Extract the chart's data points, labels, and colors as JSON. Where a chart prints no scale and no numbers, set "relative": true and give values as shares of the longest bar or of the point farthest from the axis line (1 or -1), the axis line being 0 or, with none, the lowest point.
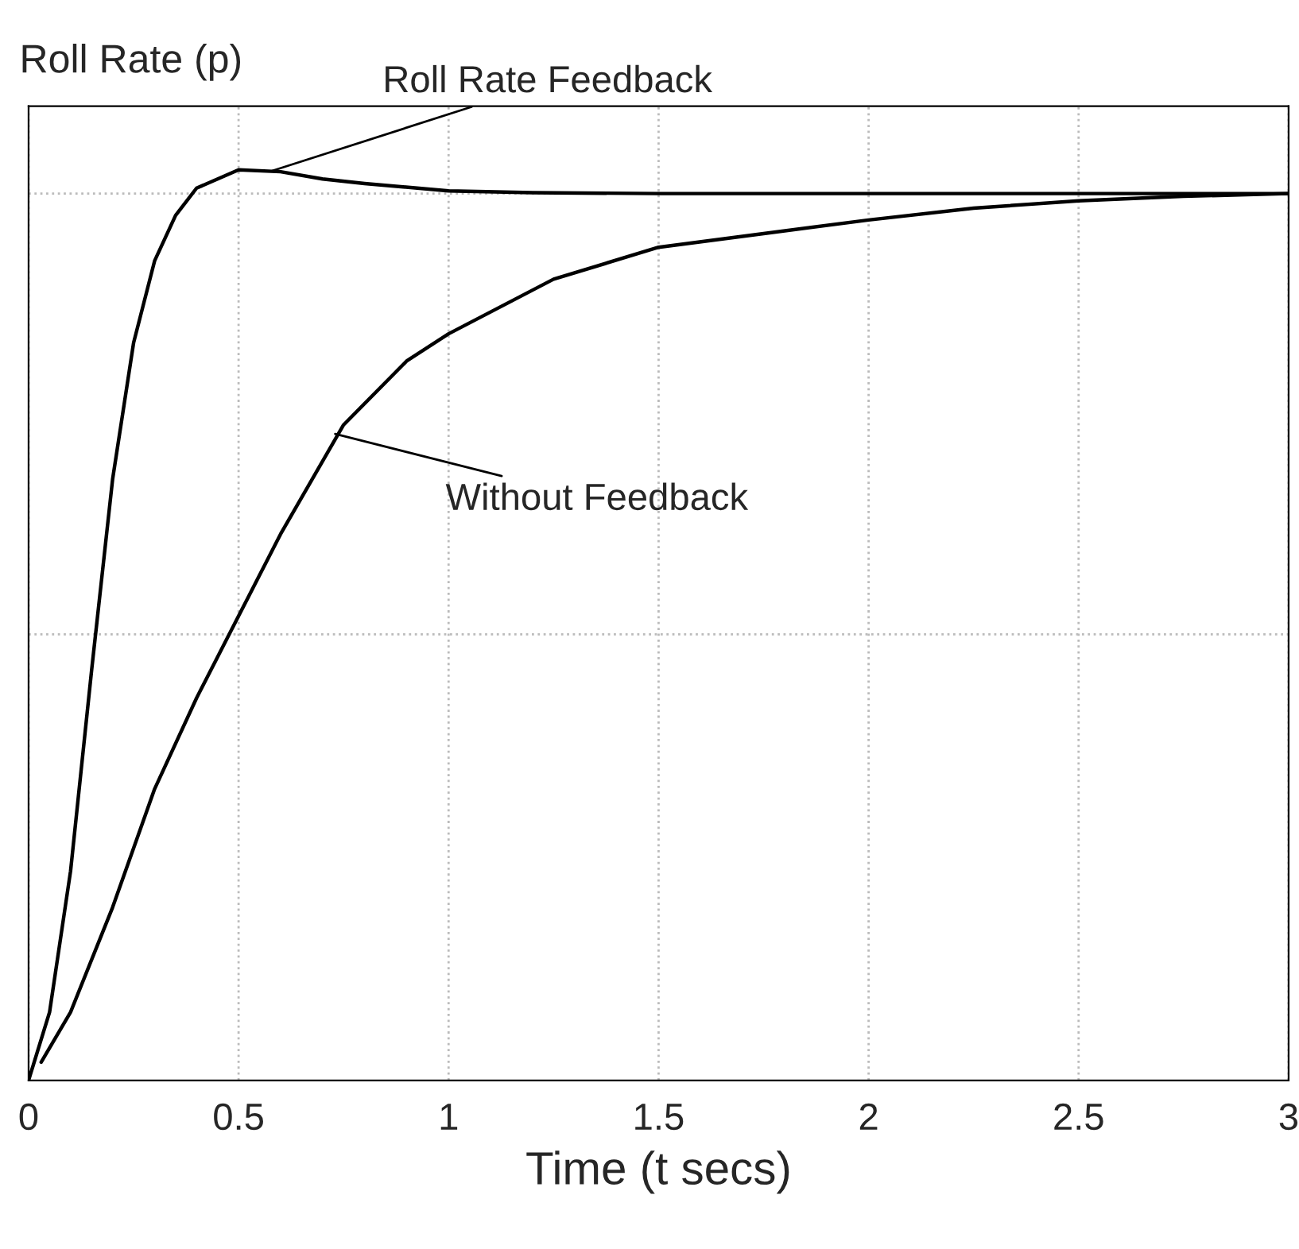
{
  "chart_data": {
    "type": "line",
    "relative": true,
    "ylabel": "Roll Rate (p)",
    "xlabel": "Time (t secs)",
    "xlim": [
      0,
      3
    ],
    "xticks": [
      0,
      0.5,
      1,
      1.5,
      2,
      2.5,
      3
    ],
    "grid": "x",
    "tick_labels": "x",
    "marker": "none",
    "line_style": "solid",
    "series": [
      {
        "color": "#000000",
        "x": [
          0,
          0.05,
          0.1,
          0.15,
          0.2,
          0.25,
          0.3,
          0.35,
          0.4,
          0.5,
          0.6,
          0.7,
          0.8,
          1.0,
          1.2,
          1.5,
          2.0,
          2.5,
          3.0
        ],
        "values": [
          0,
          0.075,
          0.23,
          0.45,
          0.66,
          0.81,
          0.9,
          0.95,
          0.98,
          1.0,
          0.998,
          0.99,
          0.985,
          0.977,
          0.975,
          0.974,
          0.974,
          0.974,
          0.974
        ]
      },
      {
        "color": "#000000",
        "x": [
          0.03,
          0.1,
          0.2,
          0.3,
          0.4,
          0.5,
          0.6,
          0.75,
          0.9,
          1.0,
          1.25,
          1.5,
          1.75,
          2.0,
          2.25,
          2.5,
          2.75,
          3.0
        ],
        "values": [
          0.02,
          0.075,
          0.19,
          0.32,
          0.42,
          0.51,
          0.6,
          0.72,
          0.79,
          0.82,
          0.88,
          0.915,
          0.93,
          0.945,
          0.958,
          0.966,
          0.971,
          0.974
        ]
      }
    ],
    "ref_lines": [
      {
        "axis": "y",
        "value": 0.974,
        "color": "#bbbbbb",
        "line_style": "dotted"
      },
      {
        "axis": "y",
        "value": 0.49,
        "color": "#bbbbbb",
        "line_style": "dotted"
      }
    ],
    "annotations": [
      {
        "text": "Roll Rate Feedback",
        "x": 0.58,
        "y": 0.999
      },
      {
        "text": "Without Feedback",
        "x": 0.73,
        "y": 0.71
      }
    ]
  }
}
